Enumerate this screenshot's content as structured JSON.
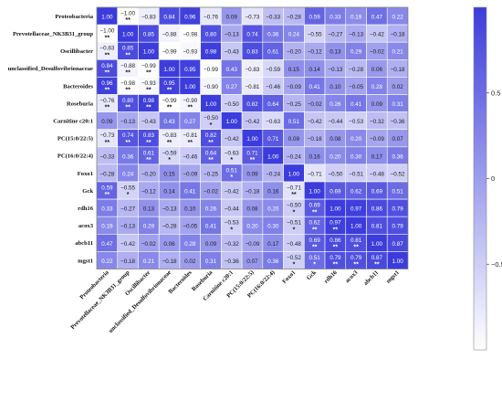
{
  "chart_data": {
    "type": "heatmap",
    "title": "",
    "xlabel": "",
    "ylabel": "",
    "value_range": [
      -1,
      1
    ],
    "colors": {
      "low": "#ffffff",
      "high": "#3c3cdc"
    },
    "colorbar": {
      "position": "right",
      "ticks": [
        -0.5,
        0,
        0.5
      ],
      "tick_labels": [
        "−0.5",
        "0",
        "0.5"
      ]
    },
    "rows": [
      "Proteobacteria",
      "Prevotellaceae_NK3B31_group",
      "Oscillibacter",
      "unclassified_Desulfovibrionaceae",
      "Bacteroides",
      "Roseburia",
      "Carnitine c20:1",
      "PC(15:0/22:5)",
      "PC(16:0/22:4)",
      "Foxo1",
      "Gck",
      "rdh16",
      "acox3",
      "abcb11",
      "mgst1"
    ],
    "columns": [
      "Proteobacteria",
      "Prevotellaceae_NK3B31_group",
      "Oscillibacter",
      "unclassified_Desulfovibrionaceae",
      "Bacteroides",
      "Roseburia",
      "Carnitine c20:1",
      "PC(15:0/22:5)",
      "PC(16:0/22:4)",
      "Foxo1",
      "Gck",
      "rdh16",
      "acox3",
      "abcb11",
      "mgst1"
    ],
    "values": [
      [
        1.0,
        -1.0,
        -0.83,
        0.84,
        0.96,
        -0.76,
        0.09,
        -0.73,
        -0.33,
        -0.28,
        0.59,
        0.33,
        0.19,
        0.47,
        0.22
      ],
      [
        -1.0,
        1.0,
        0.85,
        -0.88,
        -0.98,
        0.8,
        -0.13,
        0.74,
        0.36,
        0.24,
        -0.55,
        -0.27,
        -0.13,
        -0.42,
        -0.18
      ],
      [
        -0.83,
        0.85,
        1.0,
        -0.99,
        -0.93,
        0.98,
        -0.43,
        0.83,
        0.61,
        -0.2,
        -0.12,
        0.13,
        0.29,
        -0.02,
        0.21
      ],
      [
        0.84,
        -0.88,
        -0.99,
        1.0,
        0.95,
        -0.99,
        0.43,
        -0.83,
        -0.59,
        0.15,
        0.14,
        -0.13,
        -0.28,
        0.06,
        -0.18
      ],
      [
        0.96,
        -0.98,
        -0.93,
        0.95,
        1.0,
        -0.9,
        0.27,
        -0.81,
        -0.46,
        -0.09,
        0.41,
        0.1,
        -0.05,
        0.28,
        0.02
      ],
      [
        -0.76,
        0.8,
        0.98,
        -0.99,
        -0.9,
        1.0,
        -0.5,
        0.82,
        0.64,
        -0.25,
        -0.02,
        0.26,
        0.41,
        0.09,
        0.31
      ],
      [
        0.09,
        -0.13,
        -0.43,
        0.43,
        0.27,
        -0.5,
        1.0,
        -0.42,
        -0.63,
        0.51,
        -0.42,
        -0.44,
        -0.53,
        -0.32,
        -0.36
      ],
      [
        -0.73,
        0.74,
        0.83,
        -0.83,
        -0.81,
        0.82,
        -0.42,
        1.0,
        0.71,
        0.09,
        -0.18,
        0.08,
        0.2,
        -0.09,
        0.07
      ],
      [
        -0.33,
        0.36,
        0.61,
        -0.59,
        -0.46,
        0.64,
        -0.63,
        0.71,
        1.0,
        -0.24,
        0.16,
        0.2,
        0.3,
        0.17,
        0.36
      ],
      [
        -0.28,
        0.24,
        -0.2,
        0.15,
        -0.09,
        -0.25,
        0.51,
        0.09,
        -0.24,
        1.0,
        -0.71,
        -0.5,
        -0.51,
        -0.48,
        -0.52
      ],
      [
        0.59,
        -0.55,
        -0.12,
        0.14,
        0.41,
        -0.02,
        -0.42,
        -0.18,
        0.16,
        -0.71,
        1.0,
        0.69,
        0.62,
        0.69,
        0.51
      ],
      [
        0.33,
        -0.27,
        0.13,
        -0.13,
        0.1,
        0.26,
        -0.44,
        0.08,
        0.2,
        -0.5,
        0.69,
        1.0,
        0.97,
        0.86,
        0.79
      ],
      [
        0.19,
        -0.13,
        0.29,
        -0.28,
        -0.05,
        0.41,
        -0.53,
        0.2,
        0.3,
        -0.51,
        0.62,
        0.97,
        1.0,
        0.81,
        0.79
      ],
      [
        0.47,
        -0.42,
        -0.02,
        0.06,
        0.28,
        0.09,
        -0.32,
        -0.09,
        0.17,
        -0.48,
        0.69,
        0.86,
        0.81,
        1.0,
        0.87
      ],
      [
        0.22,
        -0.18,
        0.21,
        -0.18,
        0.02,
        0.31,
        -0.36,
        0.07,
        0.36,
        -0.52,
        0.51,
        0.79,
        0.79,
        0.87,
        1.0
      ]
    ],
    "significance": [
      [
        "",
        "**",
        "",
        "",
        "",
        "",
        "",
        "",
        "",
        "",
        "",
        "",
        "",
        "",
        ""
      ],
      [
        "**",
        "",
        "",
        "",
        "",
        "",
        "",
        "",
        "",
        "",
        "",
        "",
        "",
        "",
        ""
      ],
      [
        "**",
        "**",
        "",
        "",
        "",
        "",
        "",
        "",
        "",
        "",
        "",
        "",
        "",
        "",
        ""
      ],
      [
        "**",
        "**",
        "**",
        "",
        "",
        "",
        "",
        "",
        "",
        "",
        "",
        "",
        "",
        "",
        ""
      ],
      [
        "**",
        "**",
        "**",
        "**",
        "",
        "",
        "",
        "",
        "",
        "",
        "",
        "",
        "",
        "",
        ""
      ],
      [
        "**",
        "**",
        "**",
        "**",
        "**",
        "",
        "",
        "",
        "",
        "",
        "",
        "",
        "",
        "",
        ""
      ],
      [
        "",
        "",
        "",
        "",
        "",
        "*",
        "",
        "",
        "",
        "",
        "",
        "",
        "",
        "",
        ""
      ],
      [
        "**",
        "**",
        "**",
        "**",
        "**",
        "**",
        "",
        "",
        "",
        "",
        "",
        "",
        "",
        "",
        ""
      ],
      [
        "",
        "",
        "**",
        "*",
        "",
        "**",
        "*",
        "**",
        "",
        "",
        "",
        "",
        "",
        "",
        ""
      ],
      [
        "",
        "",
        "",
        "",
        "",
        "",
        "*",
        "",
        "",
        "",
        "",
        "",
        "",
        "",
        ""
      ],
      [
        "**",
        "*",
        "",
        "",
        "",
        "",
        "",
        "",
        "",
        "**",
        "",
        "",
        "",
        "",
        ""
      ],
      [
        "",
        "",
        "",
        "",
        "",
        "",
        "",
        "",
        "",
        "*",
        "**",
        "",
        "",
        "",
        ""
      ],
      [
        "",
        "",
        "",
        "",
        "",
        "",
        "*",
        "",
        "",
        "*",
        "**",
        "**",
        "",
        "",
        ""
      ],
      [
        "",
        "",
        "",
        "",
        "",
        "",
        "",
        "",
        "",
        "",
        "**",
        "**",
        "**",
        "",
        ""
      ],
      [
        "",
        "",
        "",
        "",
        "",
        "",
        "",
        "",
        "",
        "*",
        "*",
        "**",
        "**",
        "**",
        ""
      ]
    ]
  }
}
